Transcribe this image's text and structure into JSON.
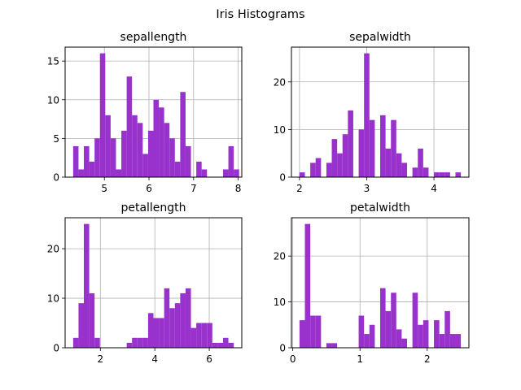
{
  "figure": {
    "title": "Iris Histograms"
  },
  "colors": {
    "bar": "#9932cc",
    "grid": "#b0b0b0",
    "axis": "#000000"
  },
  "chart_data": [
    {
      "type": "bar",
      "title": "sepallength",
      "xlabel": "",
      "ylabel": "",
      "grid": true,
      "xlim": [
        4.12,
        8.08
      ],
      "ylim": [
        0,
        16.8
      ],
      "xticks": [
        5,
        6,
        7,
        8
      ],
      "yticks": [
        0,
        5,
        10,
        15
      ],
      "bin_width": 0.12,
      "bins": [
        {
          "x0": 4.3,
          "x1": 4.42,
          "value": 4
        },
        {
          "x0": 4.42,
          "x1": 4.54,
          "value": 1
        },
        {
          "x0": 4.54,
          "x1": 4.66,
          "value": 4
        },
        {
          "x0": 4.66,
          "x1": 4.78,
          "value": 2
        },
        {
          "x0": 4.78,
          "x1": 4.9,
          "value": 5
        },
        {
          "x0": 4.9,
          "x1": 5.02,
          "value": 16
        },
        {
          "x0": 5.02,
          "x1": 5.14,
          "value": 8
        },
        {
          "x0": 5.14,
          "x1": 5.26,
          "value": 5
        },
        {
          "x0": 5.26,
          "x1": 5.38,
          "value": 1
        },
        {
          "x0": 5.38,
          "x1": 5.5,
          "value": 6
        },
        {
          "x0": 5.5,
          "x1": 5.62,
          "value": 13
        },
        {
          "x0": 5.62,
          "x1": 5.74,
          "value": 8
        },
        {
          "x0": 5.74,
          "x1": 5.86,
          "value": 7
        },
        {
          "x0": 5.86,
          "x1": 5.98,
          "value": 3
        },
        {
          "x0": 5.98,
          "x1": 6.1,
          "value": 6
        },
        {
          "x0": 6.1,
          "x1": 6.22,
          "value": 10
        },
        {
          "x0": 6.22,
          "x1": 6.34,
          "value": 9
        },
        {
          "x0": 6.34,
          "x1": 6.46,
          "value": 7
        },
        {
          "x0": 6.46,
          "x1": 6.58,
          "value": 5
        },
        {
          "x0": 6.58,
          "x1": 6.7,
          "value": 2
        },
        {
          "x0": 6.7,
          "x1": 6.82,
          "value": 11
        },
        {
          "x0": 6.82,
          "x1": 6.94,
          "value": 4
        },
        {
          "x0": 6.94,
          "x1": 7.06,
          "value": 0
        },
        {
          "x0": 7.06,
          "x1": 7.18,
          "value": 2
        },
        {
          "x0": 7.18,
          "x1": 7.3,
          "value": 1
        },
        {
          "x0": 7.3,
          "x1": 7.42,
          "value": 0
        },
        {
          "x0": 7.42,
          "x1": 7.54,
          "value": 0
        },
        {
          "x0": 7.54,
          "x1": 7.66,
          "value": 0
        },
        {
          "x0": 7.66,
          "x1": 7.78,
          "value": 1
        },
        {
          "x0": 7.78,
          "x1": 7.9,
          "value": 4
        },
        {
          "x0": 7.9,
          "x1": 8.02,
          "value": 1
        }
      ]
    },
    {
      "type": "bar",
      "title": "sepalwidth",
      "xlabel": "",
      "ylabel": "",
      "grid": true,
      "xlim": [
        1.88,
        4.52
      ],
      "ylim": [
        0,
        27.3
      ],
      "xticks": [
        2,
        3,
        4
      ],
      "yticks": [
        0,
        10,
        20
      ],
      "bins": [
        {
          "x0": 2.0,
          "x1": 2.08,
          "value": 1
        },
        {
          "x0": 2.08,
          "x1": 2.16,
          "value": 0
        },
        {
          "x0": 2.16,
          "x1": 2.24,
          "value": 3
        },
        {
          "x0": 2.24,
          "x1": 2.32,
          "value": 4
        },
        {
          "x0": 2.32,
          "x1": 2.4,
          "value": 0
        },
        {
          "x0": 2.4,
          "x1": 2.48,
          "value": 3
        },
        {
          "x0": 2.48,
          "x1": 2.56,
          "value": 8
        },
        {
          "x0": 2.56,
          "x1": 2.64,
          "value": 5
        },
        {
          "x0": 2.64,
          "x1": 2.72,
          "value": 9
        },
        {
          "x0": 2.72,
          "x1": 2.8,
          "value": 14
        },
        {
          "x0": 2.8,
          "x1": 2.88,
          "value": 0
        },
        {
          "x0": 2.88,
          "x1": 2.96,
          "value": 10
        },
        {
          "x0": 2.96,
          "x1": 3.04,
          "value": 26
        },
        {
          "x0": 3.04,
          "x1": 3.12,
          "value": 12
        },
        {
          "x0": 3.12,
          "x1": 3.2,
          "value": 0
        },
        {
          "x0": 3.2,
          "x1": 3.28,
          "value": 13
        },
        {
          "x0": 3.28,
          "x1": 3.36,
          "value": 6
        },
        {
          "x0": 3.36,
          "x1": 3.44,
          "value": 12
        },
        {
          "x0": 3.44,
          "x1": 3.52,
          "value": 5
        },
        {
          "x0": 3.52,
          "x1": 3.6,
          "value": 3
        },
        {
          "x0": 3.6,
          "x1": 3.68,
          "value": 0
        },
        {
          "x0": 3.68,
          "x1": 3.76,
          "value": 2
        },
        {
          "x0": 3.76,
          "x1": 3.84,
          "value": 6
        },
        {
          "x0": 3.84,
          "x1": 3.92,
          "value": 2
        },
        {
          "x0": 3.92,
          "x1": 4.0,
          "value": 0
        },
        {
          "x0": 4.0,
          "x1": 4.08,
          "value": 1
        },
        {
          "x0": 4.08,
          "x1": 4.16,
          "value": 1
        },
        {
          "x0": 4.16,
          "x1": 4.24,
          "value": 1
        },
        {
          "x0": 4.24,
          "x1": 4.32,
          "value": 0
        },
        {
          "x0": 4.32,
          "x1": 4.4,
          "value": 1
        }
      ]
    },
    {
      "type": "bar",
      "title": "petallength",
      "xlabel": "",
      "ylabel": "",
      "grid": true,
      "xlim": [
        0.705,
        7.195
      ],
      "ylim": [
        0,
        26.25
      ],
      "xticks": [
        2,
        4,
        6
      ],
      "yticks": [
        0,
        10,
        20
      ],
      "bins": [
        {
          "x0": 1.0,
          "x1": 1.197,
          "value": 2
        },
        {
          "x0": 1.197,
          "x1": 1.393,
          "value": 9
        },
        {
          "x0": 1.393,
          "x1": 1.59,
          "value": 25
        },
        {
          "x0": 1.59,
          "x1": 1.787,
          "value": 11
        },
        {
          "x0": 1.787,
          "x1": 1.983,
          "value": 2
        },
        {
          "x0": 1.983,
          "x1": 2.18,
          "value": 0
        },
        {
          "x0": 2.18,
          "x1": 2.377,
          "value": 0
        },
        {
          "x0": 2.377,
          "x1": 2.573,
          "value": 0
        },
        {
          "x0": 2.573,
          "x1": 2.77,
          "value": 0
        },
        {
          "x0": 2.77,
          "x1": 2.967,
          "value": 0
        },
        {
          "x0": 2.967,
          "x1": 3.163,
          "value": 1
        },
        {
          "x0": 3.163,
          "x1": 3.36,
          "value": 2
        },
        {
          "x0": 3.36,
          "x1": 3.557,
          "value": 2
        },
        {
          "x0": 3.557,
          "x1": 3.753,
          "value": 2
        },
        {
          "x0": 3.753,
          "x1": 3.95,
          "value": 7
        },
        {
          "x0": 3.95,
          "x1": 4.147,
          "value": 6
        },
        {
          "x0": 4.147,
          "x1": 4.343,
          "value": 6
        },
        {
          "x0": 4.343,
          "x1": 4.54,
          "value": 12
        },
        {
          "x0": 4.54,
          "x1": 4.737,
          "value": 8
        },
        {
          "x0": 4.737,
          "x1": 4.933,
          "value": 9
        },
        {
          "x0": 4.933,
          "x1": 5.13,
          "value": 11
        },
        {
          "x0": 5.13,
          "x1": 5.327,
          "value": 12
        },
        {
          "x0": 5.327,
          "x1": 5.523,
          "value": 4
        },
        {
          "x0": 5.523,
          "x1": 5.72,
          "value": 5
        },
        {
          "x0": 5.72,
          "x1": 5.917,
          "value": 5
        },
        {
          "x0": 5.917,
          "x1": 6.113,
          "value": 5
        },
        {
          "x0": 6.113,
          "x1": 6.31,
          "value": 1
        },
        {
          "x0": 6.31,
          "x1": 6.507,
          "value": 1
        },
        {
          "x0": 6.507,
          "x1": 6.703,
          "value": 2
        },
        {
          "x0": 6.703,
          "x1": 6.9,
          "value": 1
        }
      ]
    },
    {
      "type": "bar",
      "title": "petalwidth",
      "xlabel": "",
      "ylabel": "",
      "grid": true,
      "xlim": [
        -0.02,
        2.62
      ],
      "ylim": [
        0,
        28.35
      ],
      "xticks": [
        0,
        1,
        2
      ],
      "yticks": [
        0,
        10,
        20
      ],
      "bins": [
        {
          "x0": 0.1,
          "x1": 0.18,
          "value": 6
        },
        {
          "x0": 0.18,
          "x1": 0.26,
          "value": 27
        },
        {
          "x0": 0.26,
          "x1": 0.34,
          "value": 7
        },
        {
          "x0": 0.34,
          "x1": 0.42,
          "value": 7
        },
        {
          "x0": 0.42,
          "x1": 0.5,
          "value": 0
        },
        {
          "x0": 0.5,
          "x1": 0.58,
          "value": 1
        },
        {
          "x0": 0.58,
          "x1": 0.66,
          "value": 1
        },
        {
          "x0": 0.66,
          "x1": 0.74,
          "value": 0
        },
        {
          "x0": 0.74,
          "x1": 0.82,
          "value": 0
        },
        {
          "x0": 0.82,
          "x1": 0.9,
          "value": 0
        },
        {
          "x0": 0.9,
          "x1": 0.98,
          "value": 0
        },
        {
          "x0": 0.98,
          "x1": 1.06,
          "value": 7
        },
        {
          "x0": 1.06,
          "x1": 1.14,
          "value": 3
        },
        {
          "x0": 1.14,
          "x1": 1.22,
          "value": 5
        },
        {
          "x0": 1.22,
          "x1": 1.3,
          "value": 0
        },
        {
          "x0": 1.3,
          "x1": 1.38,
          "value": 13
        },
        {
          "x0": 1.38,
          "x1": 1.46,
          "value": 8
        },
        {
          "x0": 1.46,
          "x1": 1.54,
          "value": 12
        },
        {
          "x0": 1.54,
          "x1": 1.62,
          "value": 4
        },
        {
          "x0": 1.62,
          "x1": 1.7,
          "value": 2
        },
        {
          "x0": 1.7,
          "x1": 1.78,
          "value": 0
        },
        {
          "x0": 1.78,
          "x1": 1.86,
          "value": 12
        },
        {
          "x0": 1.86,
          "x1": 1.94,
          "value": 5
        },
        {
          "x0": 1.94,
          "x1": 2.02,
          "value": 6
        },
        {
          "x0": 2.02,
          "x1": 2.1,
          "value": 0
        },
        {
          "x0": 2.1,
          "x1": 2.18,
          "value": 6
        },
        {
          "x0": 2.18,
          "x1": 2.26,
          "value": 3
        },
        {
          "x0": 2.26,
          "x1": 2.34,
          "value": 8
        },
        {
          "x0": 2.34,
          "x1": 2.42,
          "value": 3
        },
        {
          "x0": 2.42,
          "x1": 2.5,
          "value": 3
        }
      ]
    }
  ]
}
